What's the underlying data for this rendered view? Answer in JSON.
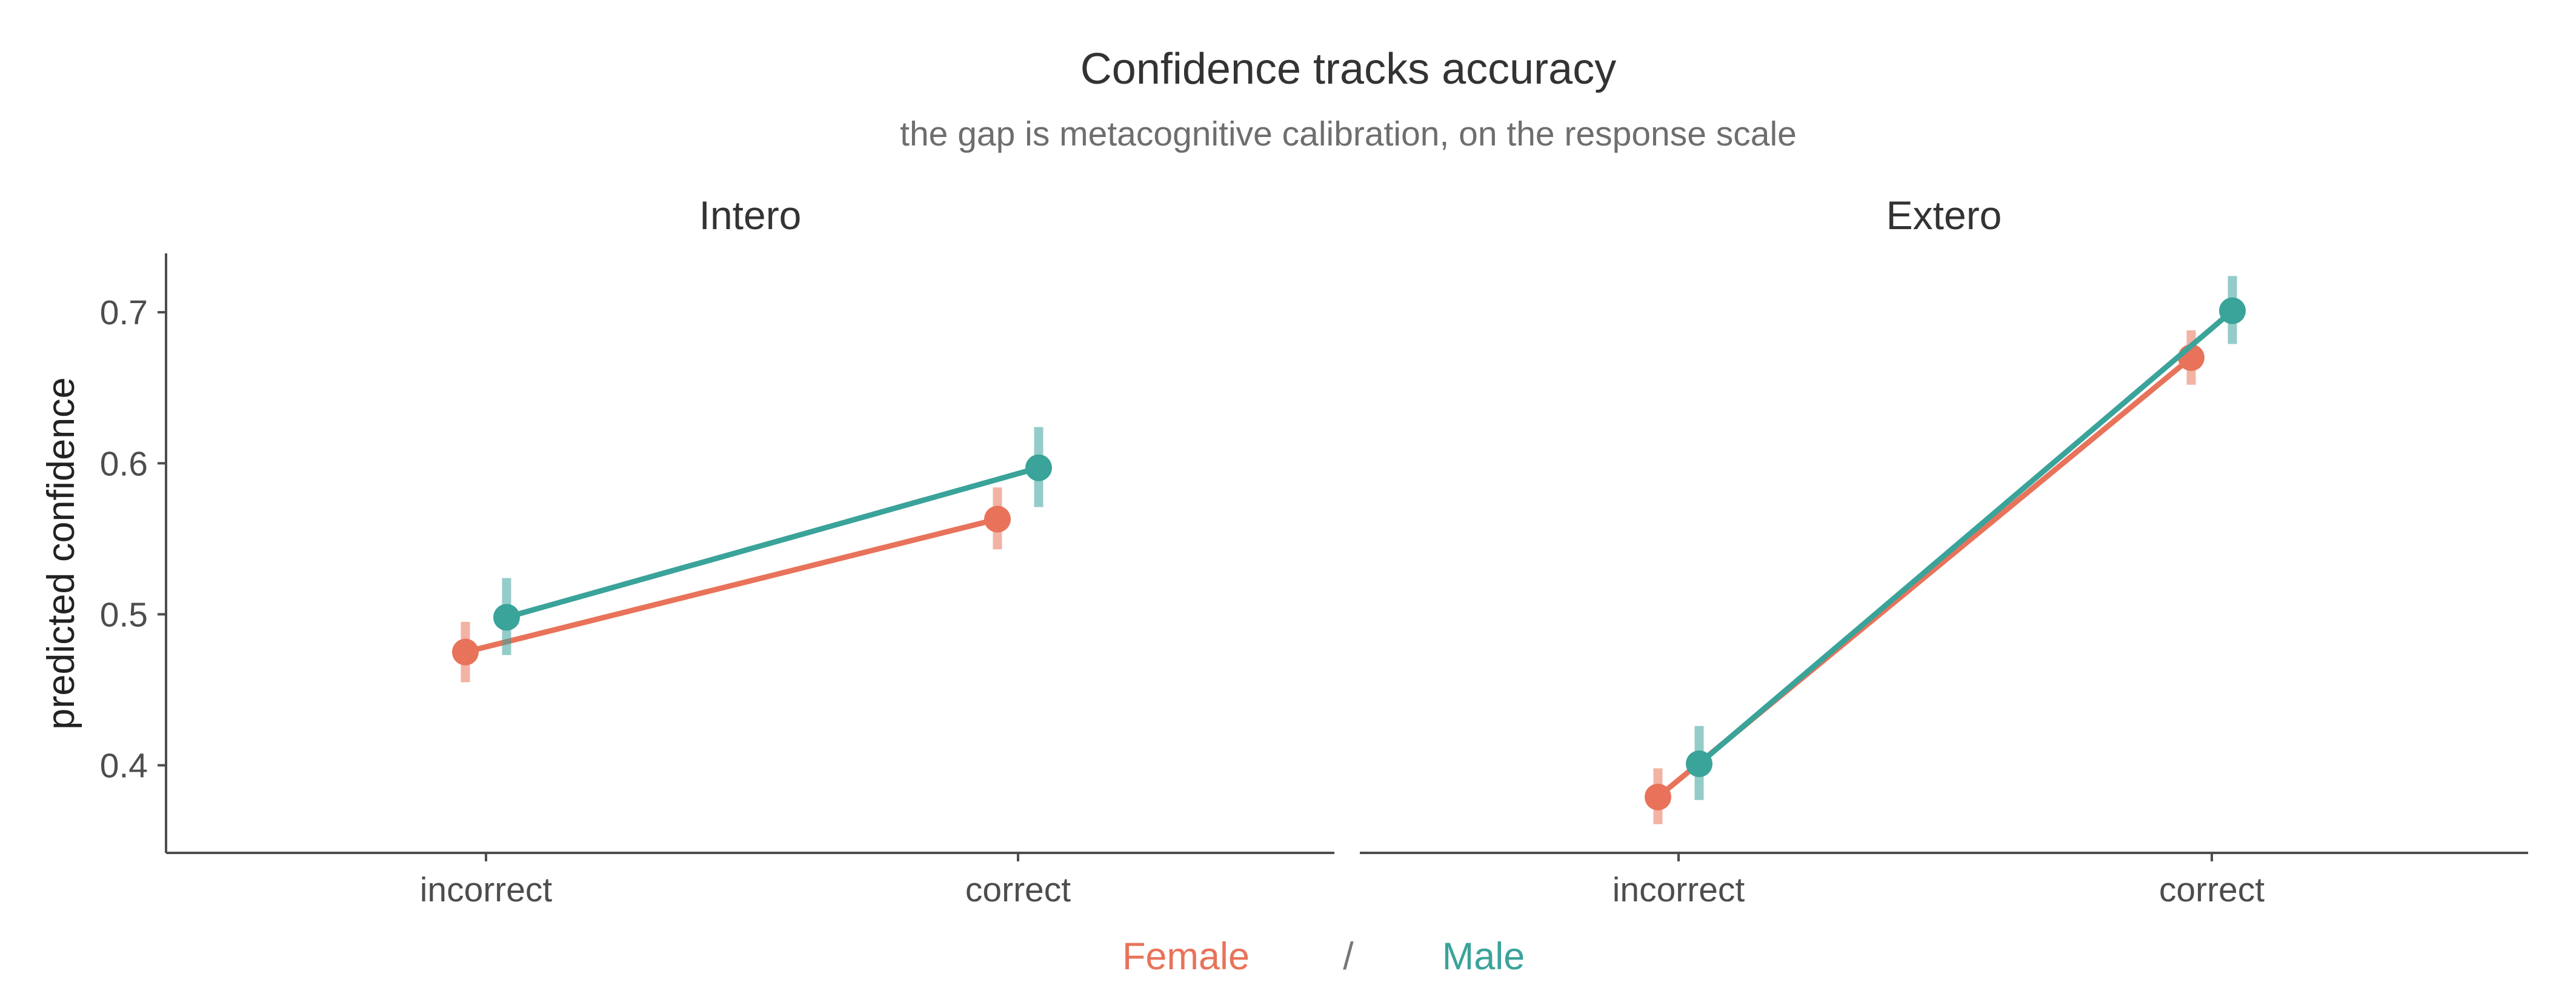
{
  "chart_data": {
    "type": "line",
    "title": "Confidence tracks accuracy",
    "subtitle": "the gap is metacognitive calibration, on the response scale",
    "ylabel": "predicted confidence",
    "xlabel": "",
    "categories": [
      "incorrect",
      "correct"
    ],
    "yticks": [
      "0.4",
      "0.5",
      "0.6",
      "0.7"
    ],
    "ylim": [
      0.342,
      0.739
    ],
    "grid": false,
    "legend": {
      "position": "bottom",
      "separator": "/",
      "entries": [
        "Female",
        "Male"
      ]
    },
    "series_colors": {
      "Female": "#E8735A",
      "Male": "#3AA39A"
    },
    "panels": [
      {
        "name": "Intero",
        "series": [
          {
            "name": "Female",
            "values": [
              0.475,
              0.563
            ],
            "lower": [
              0.455,
              0.543
            ],
            "upper": [
              0.495,
              0.584
            ]
          },
          {
            "name": "Male",
            "values": [
              0.498,
              0.597
            ],
            "lower": [
              0.473,
              0.571
            ],
            "upper": [
              0.524,
              0.624
            ]
          }
        ]
      },
      {
        "name": "Extero",
        "series": [
          {
            "name": "Female",
            "values": [
              0.379,
              0.67
            ],
            "lower": [
              0.361,
              0.652
            ],
            "upper": [
              0.398,
              0.688
            ]
          },
          {
            "name": "Male",
            "values": [
              0.401,
              0.701
            ],
            "lower": [
              0.377,
              0.679
            ],
            "upper": [
              0.426,
              0.724
            ]
          }
        ]
      }
    ]
  }
}
